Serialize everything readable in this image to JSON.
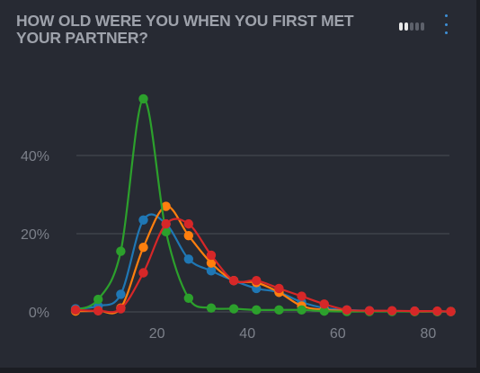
{
  "header": {
    "title": "HOW OLD WERE YOU WHEN YOU FIRST MET YOUR PARTNER?",
    "menu_icon": "kebab-menu-icon",
    "pager_icon": "pagination-dots-icon"
  },
  "colors": {
    "background": "#272a33",
    "grid": "#4a4d56",
    "series": [
      "#1f77b4",
      "#ff7f0e",
      "#2ca02c",
      "#d62728"
    ]
  },
  "chart_data": {
    "type": "line",
    "title": "HOW OLD WERE YOU WHEN YOU FIRST MET YOUR PARTNER?",
    "xlabel": "",
    "ylabel": "",
    "xlim": [
      0,
      85
    ],
    "ylim": [
      0,
      55
    ],
    "x_ticks": [
      20,
      40,
      60,
      80
    ],
    "y_ticks": [
      0,
      20,
      40
    ],
    "y_tick_labels": [
      "0%",
      "20%",
      "40%"
    ],
    "grid": true,
    "legend": "none",
    "x": [
      2,
      7,
      12,
      17,
      22,
      27,
      32,
      37,
      42,
      47,
      52,
      57,
      62,
      67,
      72,
      77,
      82,
      85
    ],
    "series": [
      {
        "color": "#1f77b4",
        "values": [
          0.8,
          1.5,
          4.5,
          23.5,
          22.5,
          13.5,
          10.5,
          8.0,
          6.0,
          5.0,
          2.5,
          1.0,
          0.5,
          0.3,
          0.2,
          0.2,
          0.1,
          0.1
        ]
      },
      {
        "color": "#ff7f0e",
        "values": [
          0.2,
          0.3,
          1.0,
          16.5,
          27.0,
          19.5,
          12.5,
          8.0,
          7.5,
          5.0,
          1.5,
          0.5,
          0.3,
          0.2,
          0.2,
          0.1,
          0.1,
          0.1
        ]
      },
      {
        "color": "#2ca02c",
        "values": [
          0.5,
          3.2,
          15.5,
          54.5,
          20.5,
          3.5,
          1.0,
          0.8,
          0.5,
          0.5,
          0.5,
          0.2,
          0.1,
          0.1,
          0.1,
          0.1,
          0.1,
          0.1
        ]
      },
      {
        "color": "#d62728",
        "values": [
          0.5,
          0.3,
          0.8,
          10.0,
          22.5,
          22.5,
          14.5,
          8.0,
          8.0,
          6.0,
          4.0,
          2.0,
          0.5,
          0.3,
          0.3,
          0.2,
          0.2,
          0.1
        ]
      }
    ]
  }
}
